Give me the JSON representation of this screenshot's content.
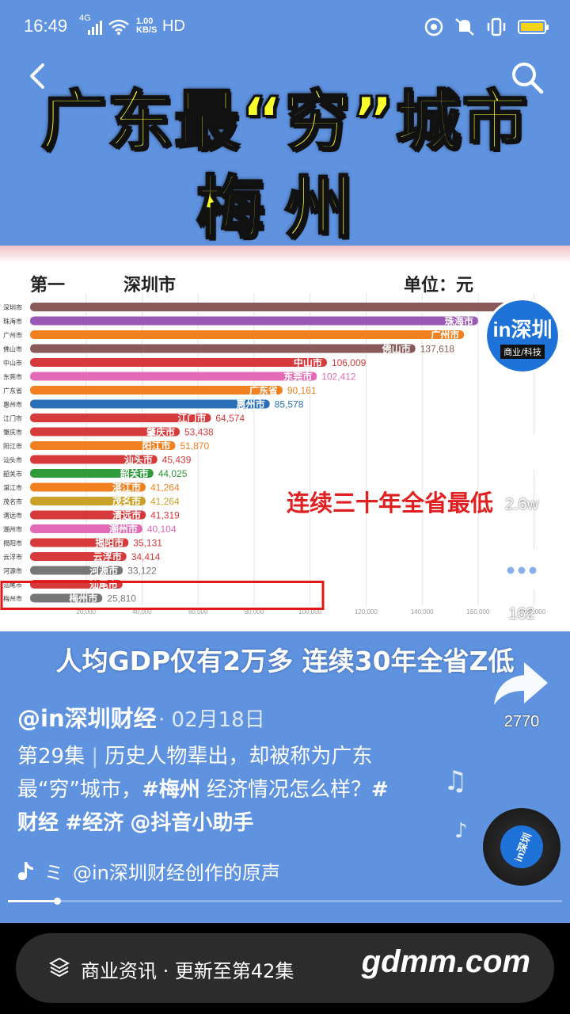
{
  "status_bar": {
    "time": "16:49",
    "network": "4G",
    "speed_value": "1.00",
    "speed_unit": "KB/S",
    "hd": "HD",
    "battery_color": "#f7d21a"
  },
  "video": {
    "title_line1": "广东最“穷”城市",
    "title_line2": "梅州",
    "chart_header_rank": "第一",
    "chart_header_city": "深圳市",
    "chart_header_unit": "单位：元",
    "annotation": "连续三十年全省最低",
    "subtitle": "人均GDP仅有2万多 连续30年全省Z低"
  },
  "chart_data": {
    "type": "bar",
    "orientation": "horizontal",
    "categories": [
      "深圳市",
      "珠海市",
      "广州市",
      "佛山市",
      "中山市",
      "东莞市",
      "广东省",
      "惠州市",
      "江门市",
      "肇庆市",
      "阳江市",
      "汕头市",
      "韶关市",
      "湛江市",
      "茂名市",
      "清远市",
      "潮州市",
      "揭阳市",
      "云浮市",
      "河源市",
      "汕尾市",
      "梅州市"
    ],
    "values": [
      183000,
      160000,
      155000,
      137618,
      106009,
      102412,
      90161,
      85578,
      64574,
      53438,
      51870,
      45439,
      44025,
      41264,
      41264,
      41319,
      40104,
      35131,
      34414,
      33122,
      33000,
      25810
    ],
    "labels": [
      "",
      "",
      "",
      "137,618",
      "106,009",
      "102,412",
      "90,161",
      "85,578",
      "64,574",
      "53,438",
      "51,870",
      "45,439",
      "44,025",
      "41,264",
      "41,264",
      "41,319",
      "40,104",
      "35,131",
      "34,414",
      "33,122",
      "",
      "25,810"
    ],
    "colors": [
      "#8a5a5a",
      "#9b59b6",
      "#f08020",
      "#8a5a5a",
      "#d63a3a",
      "#e36ab7",
      "#f08020",
      "#2a6fb8",
      "#d63a3a",
      "#d63a3a",
      "#f08020",
      "#d63a3a",
      "#2e9a3a",
      "#f08020",
      "#c9a227",
      "#d63a3a",
      "#e36ab7",
      "#d63a3a",
      "#d63a3a",
      "#777777",
      "#d63a3a",
      "#777777"
    ],
    "x_ticks": [
      "20,000",
      "40,000",
      "60,000",
      "80,000",
      "100,000",
      "120,000",
      "140,000",
      "160,000",
      "180,000"
    ],
    "xlim": [
      0,
      190000
    ],
    "highlight": "梅州市"
  },
  "rail": {
    "avatar_main": "in深圳",
    "avatar_sub": "商业/科技",
    "like_count": "2.6w",
    "comment_count": "162",
    "share_count": "2770"
  },
  "info": {
    "author": "@in深圳财经",
    "date": "· 02月18日",
    "caption_episode": "第29集",
    "caption_text1": "历史人物辈出，却被称为广东最“穷”城市，",
    "caption_tag1": "#梅州",
    "caption_text2": " 经济情况怎么样？",
    "caption_tag2": "#财经",
    "caption_tag3": "#经济",
    "caption_mention": "@抖音小助手",
    "music_prefix": "ミ",
    "music": "@in深圳财经创作的原声",
    "disc_label": "in深圳"
  },
  "bottom": {
    "series_text": "商业资讯 · 更新至第42集",
    "watermark": "gdmm.com"
  }
}
